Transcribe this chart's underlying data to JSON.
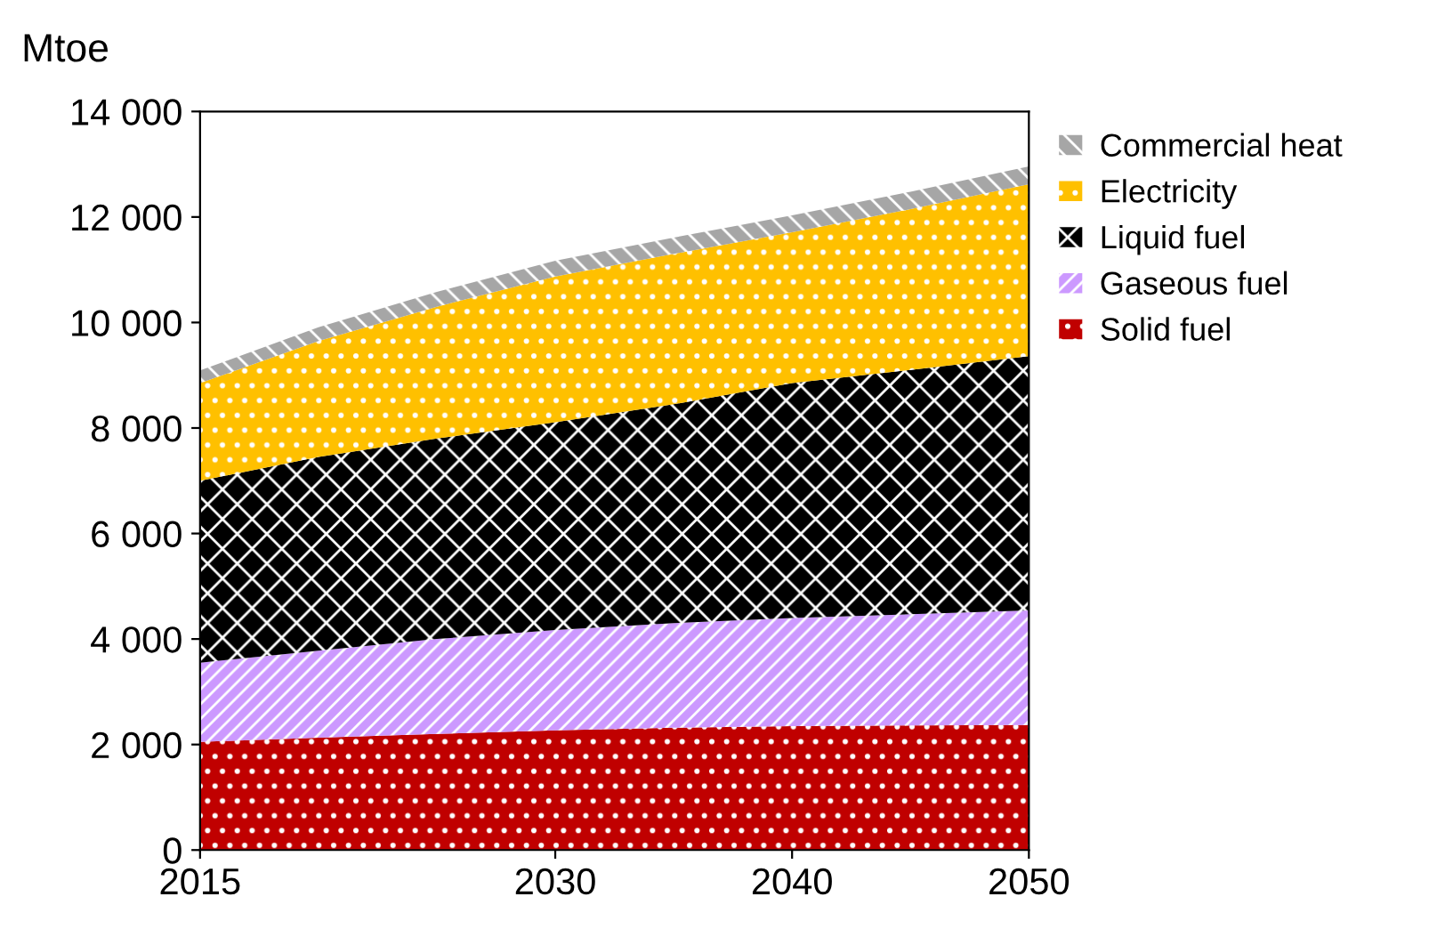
{
  "chart_data": {
    "type": "area",
    "stacked": true,
    "ylabel": "Mtoe",
    "x": [
      2015,
      2020,
      2025,
      2030,
      2035,
      2040,
      2045,
      2050
    ],
    "xlim": [
      2015,
      2050
    ],
    "xticks": [
      2015,
      2030,
      2040,
      2050
    ],
    "ylim": [
      0,
      14000
    ],
    "yticks": [
      0,
      {
        "value": 2000,
        "label": "2 000"
      },
      {
        "value": 4000,
        "label": "4 000"
      },
      {
        "value": 6000,
        "label": "6 000"
      },
      {
        "value": 8000,
        "label": "8 000"
      },
      {
        "value": 10000,
        "label": "10 000"
      },
      {
        "value": 12000,
        "label": "12 000"
      },
      {
        "value": 14000,
        "label": "14 000"
      }
    ],
    "grid": false,
    "legend": "top right",
    "series": [
      {
        "name": "Solid fuel",
        "color": "#c00000",
        "values": [
          2050,
          2130,
          2200,
          2270,
          2320,
          2350,
          2360,
          2370
        ]
      },
      {
        "name": "Gaseous fuel",
        "color": "#cc99ff",
        "values": [
          1500,
          1650,
          1800,
          1900,
          1980,
          2050,
          2110,
          2170
        ]
      },
      {
        "name": "Liquid fuel",
        "color": "#000000",
        "values": [
          3450,
          3670,
          3800,
          3940,
          4150,
          4450,
          4630,
          4820
        ]
      },
      {
        "name": "Electricity",
        "color": "#ffc000",
        "values": [
          1850,
          2200,
          2500,
          2760,
          2850,
          2860,
          3050,
          3260
        ]
      },
      {
        "name": "Commercial heat",
        "color": "#a6a6a6",
        "values": [
          240,
          260,
          280,
          300,
          310,
          320,
          330,
          340
        ]
      }
    ]
  }
}
